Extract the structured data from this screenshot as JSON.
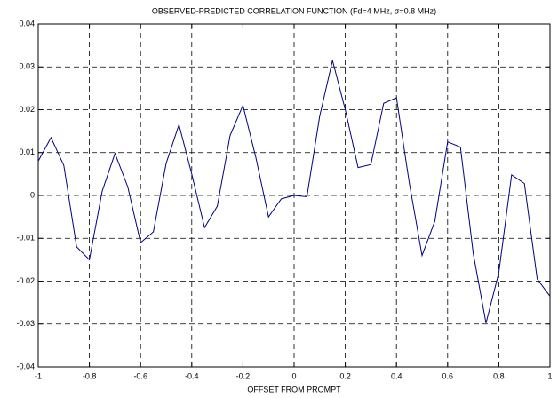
{
  "chart_data": {
    "type": "line",
    "title": "OBSERVED-PREDICTED CORRELATION FUNCTION (Fd=4 MHz, σ=0.8 MHz)",
    "x_label": "OFFSET FROM PROMPT",
    "x": [
      -1,
      -0.95,
      -0.9,
      -0.85,
      -0.8,
      -0.75,
      -0.7,
      -0.65,
      -0.6,
      -0.55,
      -0.5,
      -0.45,
      -0.4,
      -0.35,
      -0.3,
      -0.25,
      -0.2,
      -0.15,
      -0.1,
      -0.05,
      0,
      0.05,
      0.1,
      0.15,
      0.2,
      0.25,
      0.3,
      0.35,
      0.4,
      0.45,
      0.5,
      0.55,
      0.6,
      0.65,
      0.7,
      0.75,
      0.8,
      0.85,
      0.9,
      0.95,
      1
    ],
    "series": [
      {
        "color": "#000080",
        "values": [
          0.008,
          0.0135,
          0.007,
          -0.012,
          -0.015,
          0.001,
          0.0098,
          0.002,
          -0.011,
          -0.0085,
          0.0075,
          0.0165,
          0.005,
          -0.0075,
          -0.0025,
          0.014,
          0.021,
          0.009,
          -0.005,
          -0.0008,
          0,
          -0.0003,
          0.0185,
          0.0315,
          0.02,
          0.0065,
          0.0072,
          0.0215,
          0.0228,
          0.003,
          -0.014,
          -0.006,
          0.0125,
          0.0113,
          -0.0135,
          -0.0298,
          -0.018,
          0.0048,
          0.0028,
          -0.0195,
          -0.0235
        ]
      }
    ],
    "xlim": [
      -1,
      1
    ],
    "xticks": [
      -1,
      -0.8,
      -0.6,
      -0.4,
      -0.2,
      0,
      0.2,
      0.4,
      0.6,
      0.8,
      1
    ],
    "ylim": [
      -0.04,
      0.04
    ],
    "yticks": [
      -0.04,
      -0.03,
      -0.02,
      -0.01,
      0,
      0.01,
      0.02,
      0.03,
      0.04
    ],
    "grid": true
  }
}
